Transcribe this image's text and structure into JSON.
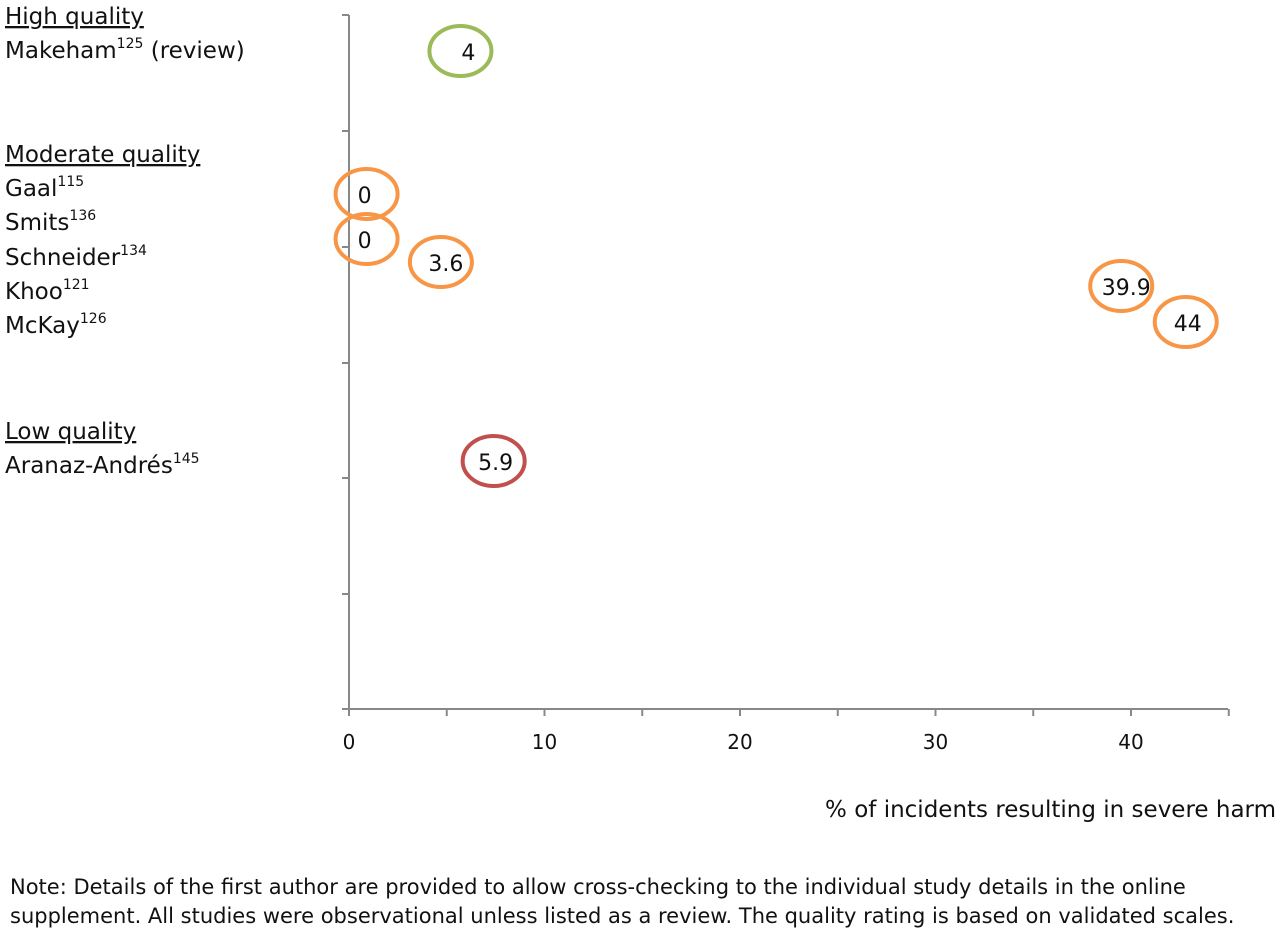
{
  "chart_data": {
    "type": "scatter",
    "xlabel": "% of incidents resulting in severe harm",
    "xlim": [
      0,
      45
    ],
    "xticks": [
      0,
      10,
      20,
      30,
      40
    ],
    "groups": [
      {
        "heading": "High quality",
        "color": "#9bbb59",
        "studies": [
          {
            "name": "Makeham",
            "ref": "125",
            "suffix": " (review)",
            "value": 4,
            "x": 5.7
          }
        ]
      },
      {
        "heading": "Moderate quality",
        "color": "#f79646",
        "studies": [
          {
            "name": "Gaal",
            "ref": "115",
            "suffix": "",
            "value": 0,
            "x": 0.9
          },
          {
            "name": "Smits",
            "ref": "136",
            "suffix": "",
            "value": 0,
            "x": 0.9
          },
          {
            "name": "Schneider",
            "ref": "134",
            "suffix": "",
            "value": 3.6,
            "x": 4.7
          },
          {
            "name": "Khoo",
            "ref": "121",
            "suffix": "",
            "value": 39.9,
            "x": 39.5
          },
          {
            "name": "McKay",
            "ref": "126",
            "suffix": "",
            "value": 44,
            "x": 42.8
          }
        ]
      },
      {
        "heading": "Low quality",
        "color": "#c0504d",
        "studies": [
          {
            "name": "Aranaz-Andrés",
            "ref": "145",
            "suffix": "",
            "value": 5.9,
            "x": 7.4
          }
        ]
      }
    ]
  },
  "note": "Note: Details of the first author are provided to allow cross-checking to the individual study details in the online supplement. All studies were observational unless listed as a review. The quality rating is based on validated scales."
}
